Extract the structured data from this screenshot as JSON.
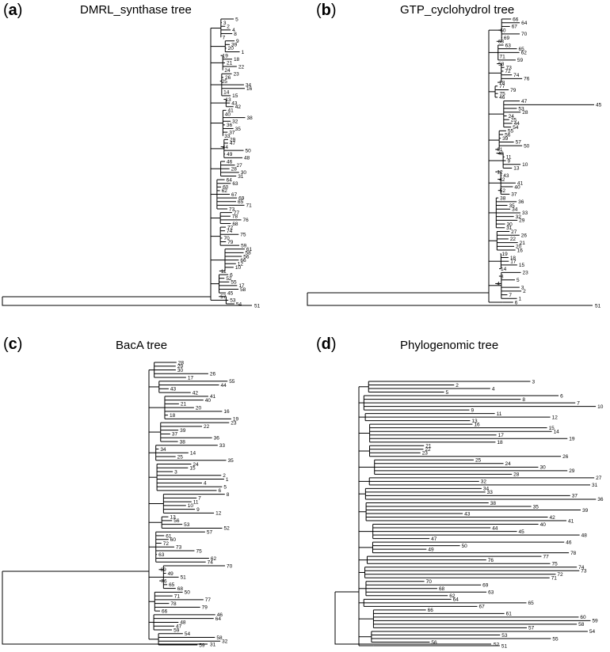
{
  "panels": [
    {
      "id": "a",
      "letter": "a",
      "title": "DMRL_synthase tree",
      "leaves": [
        "5",
        "3",
        "2",
        "4",
        "8",
        "7",
        "9",
        "39",
        "20",
        "1",
        "19",
        "18",
        "21",
        "22",
        "24",
        "23",
        "26",
        "25",
        "34",
        "16",
        "14",
        "15",
        "13",
        "43",
        "42",
        "41",
        "40",
        "38",
        "32",
        "36",
        "35",
        "37",
        "33",
        "29",
        "47",
        "44",
        "50",
        "49",
        "48",
        "46",
        "27",
        "28",
        "30",
        "31",
        "64",
        "63",
        "60",
        "62",
        "67",
        "69",
        "65",
        "71",
        "73",
        "77",
        "78",
        "76",
        "68",
        "72",
        "74",
        "75",
        "70",
        "79",
        "59",
        "61",
        "58",
        "56",
        "66",
        "12",
        "10",
        "11",
        "6",
        "52",
        "55",
        "17",
        "58",
        "45",
        "57",
        "53",
        "54",
        "51"
      ],
      "outgroup": "51"
    },
    {
      "id": "b",
      "letter": "b",
      "title": "GTP_cyclohydrol tree",
      "leaves": [
        "66",
        "64",
        "67",
        "60",
        "70",
        "69",
        "68",
        "63",
        "65",
        "62",
        "71",
        "59",
        "58",
        "73",
        "72",
        "74",
        "76",
        "78",
        "77",
        "79",
        "75",
        "46",
        "47",
        "45",
        "53",
        "28",
        "24",
        "25",
        "44",
        "54",
        "55",
        "56",
        "39",
        "57",
        "50",
        "61",
        "48",
        "11",
        "9",
        "10",
        "13",
        "12",
        "43",
        "42",
        "41",
        "40",
        "52",
        "37",
        "38",
        "36",
        "35",
        "34",
        "33",
        "32",
        "29",
        "30",
        "31",
        "27",
        "26",
        "22",
        "21",
        "20",
        "16",
        "19",
        "18",
        "17",
        "15",
        "14",
        "23",
        "8",
        "5",
        "4",
        "3",
        "2",
        "7",
        "1",
        "6",
        "51"
      ],
      "outgroup": "51",
      "longbranch": "45"
    },
    {
      "id": "c",
      "letter": "c",
      "title": "BacA tree",
      "leaves": [
        "28",
        "29",
        "30",
        "26",
        "17",
        "55",
        "44",
        "43",
        "42",
        "41",
        "40",
        "21",
        "20",
        "16",
        "18",
        "19",
        "23",
        "22",
        "39",
        "37",
        "36",
        "38",
        "33",
        "34",
        "14",
        "25",
        "35",
        "24",
        "15",
        "3",
        "2",
        "1",
        "4",
        "5",
        "6",
        "8",
        "7",
        "11",
        "10",
        "9",
        "12",
        "13",
        "56",
        "53",
        "52",
        "57",
        "61",
        "60",
        "72",
        "73",
        "75",
        "63",
        "62",
        "74",
        "70",
        "69",
        "49",
        "51",
        "76",
        "65",
        "68",
        "50",
        "71",
        "77",
        "78",
        "79",
        "66",
        "46",
        "64",
        "48",
        "47",
        "59",
        "54",
        "58",
        "32",
        "59",
        "31"
      ],
      "outgroup": "31"
    },
    {
      "id": "d",
      "letter": "d",
      "title": "Phylogenomic tree",
      "leaves": [
        "3",
        "2",
        "4",
        "5",
        "6",
        "8",
        "7",
        "10",
        "9",
        "11",
        "12",
        "13",
        "16",
        "15",
        "14",
        "17",
        "19",
        "18",
        "21",
        "22",
        "23",
        "26",
        "25",
        "24",
        "30",
        "29",
        "28",
        "27",
        "32",
        "31",
        "34",
        "33",
        "37",
        "36",
        "38",
        "35",
        "39",
        "43",
        "42",
        "41",
        "40",
        "44",
        "45",
        "48",
        "47",
        "46",
        "50",
        "49",
        "78",
        "77",
        "76",
        "75",
        "74",
        "73",
        "72",
        "71",
        "70",
        "69",
        "68",
        "63",
        "62",
        "64",
        "65",
        "67",
        "66",
        "61",
        "60",
        "59",
        "58",
        "57",
        "54",
        "53",
        "55",
        "56",
        "51",
        "52"
      ],
      "outgroup": "52"
    }
  ]
}
